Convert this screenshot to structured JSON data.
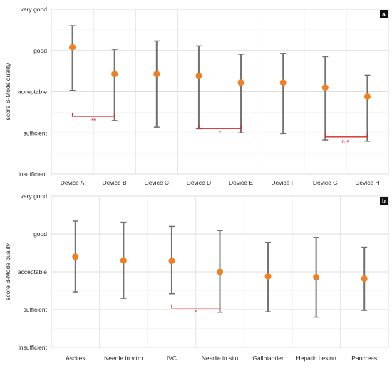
{
  "chart_data": [
    {
      "type": "scatter",
      "panel_label": "a",
      "ylabel": "score B-Mode quality",
      "y_ticks": [
        "insufficient",
        "sufficient",
        "acceptable",
        "good",
        "very good"
      ],
      "ylim": [
        1,
        5
      ],
      "categories": [
        "Device A",
        "Device B",
        "Device C",
        "Device D",
        "Device E",
        "Device F",
        "Device G",
        "Device H"
      ],
      "mean": [
        4.08,
        3.43,
        3.43,
        3.38,
        3.22,
        3.22,
        3.1,
        2.88
      ],
      "lower": [
        3.03,
        2.3,
        2.14,
        2.1,
        2.0,
        1.98,
        1.83,
        1.8
      ],
      "upper": [
        4.6,
        4.03,
        4.23,
        4.11,
        3.91,
        3.93,
        3.85,
        3.4
      ],
      "significance": [
        {
          "from": 0,
          "to": 1,
          "label": "**"
        },
        {
          "from": 3,
          "to": 4,
          "label": "*"
        },
        {
          "from": 6,
          "to": 7,
          "label": "n.s."
        }
      ],
      "grid": true,
      "marker_color": "#f07f22",
      "errorbar_color": "#707070",
      "bracket_color": "#d62728"
    },
    {
      "type": "scatter",
      "panel_label": "b",
      "ylabel": "score B-Mode quality",
      "y_ticks": [
        "insufficient",
        "sufficient",
        "acceptable",
        "good",
        "very good"
      ],
      "ylim": [
        1,
        5
      ],
      "categories": [
        "Ascites",
        "Needle in vitro",
        "IVC",
        "Needle in situ",
        "Gallbladder",
        "Hepatic Lesion",
        "Pancreas"
      ],
      "mean": [
        3.4,
        3.3,
        3.29,
        3.0,
        2.88,
        2.86,
        2.82
      ],
      "lower": [
        2.47,
        2.3,
        2.42,
        1.93,
        1.94,
        1.8,
        1.98
      ],
      "upper": [
        4.34,
        4.31,
        4.2,
        4.09,
        3.78,
        3.91,
        3.65
      ],
      "significance": [
        {
          "from": 2,
          "to": 3,
          "label": "*"
        }
      ],
      "grid": true,
      "marker_color": "#f07f22",
      "errorbar_color": "#707070",
      "bracket_color": "#d62728"
    }
  ]
}
